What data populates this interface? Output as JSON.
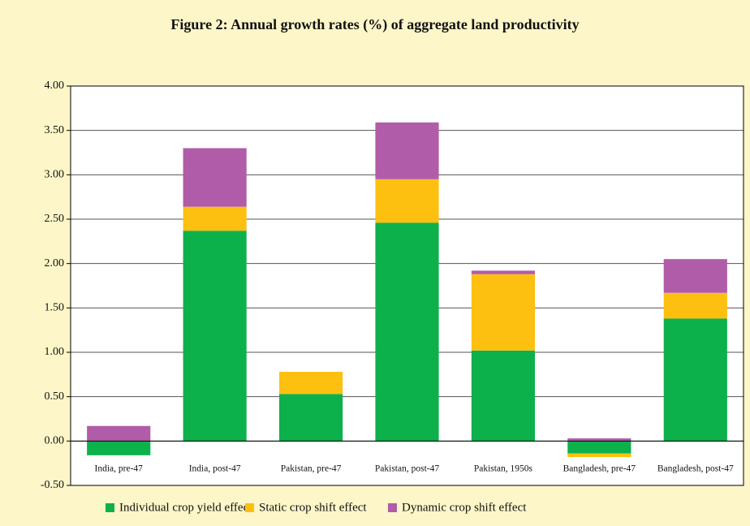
{
  "chart_data": {
    "type": "stacked_bar",
    "title": "Figure 2: Annual growth rates (%) of aggregate land productivity",
    "categories": [
      "India, pre-47",
      "India, post-47",
      "Pakistan, pre-47",
      "Pakistan, post-47",
      "Pakistan, 1950s",
      "Bangladesh, pre-47",
      "Bangladesh, post-47"
    ],
    "series": [
      {
        "name": "Individual crop yield effect",
        "color": "#0db14b",
        "values": [
          -0.16,
          2.37,
          0.53,
          2.46,
          1.02,
          -0.14,
          1.38
        ]
      },
      {
        "name": "Static crop shift effect",
        "color": "#fdc010",
        "values": [
          0,
          0.27,
          0.25,
          0.49,
          0.86,
          -0.04,
          0.29
        ]
      },
      {
        "name": "Dynamic crop shift effect",
        "color": "#b05ca8",
        "values": [
          0.17,
          0.66,
          0,
          0.64,
          0.04,
          0.03,
          0.38
        ]
      }
    ],
    "ylim": [
      -0.5,
      4
    ],
    "yticks": [
      {
        "value": -0.5,
        "label": "-0.50"
      },
      {
        "value": 0,
        "label": "0.00"
      },
      {
        "value": 0.5,
        "label": "0.50"
      },
      {
        "value": 1,
        "label": "1.00"
      },
      {
        "value": 1.5,
        "label": "1.50"
      },
      {
        "value": 2,
        "label": "2.00"
      },
      {
        "value": 2.5,
        "label": "2.50"
      },
      {
        "value": 3,
        "label": "3.00"
      },
      {
        "value": 3.5,
        "label": "3.50"
      },
      {
        "value": 4,
        "label": "4.00"
      }
    ],
    "grid": true
  }
}
